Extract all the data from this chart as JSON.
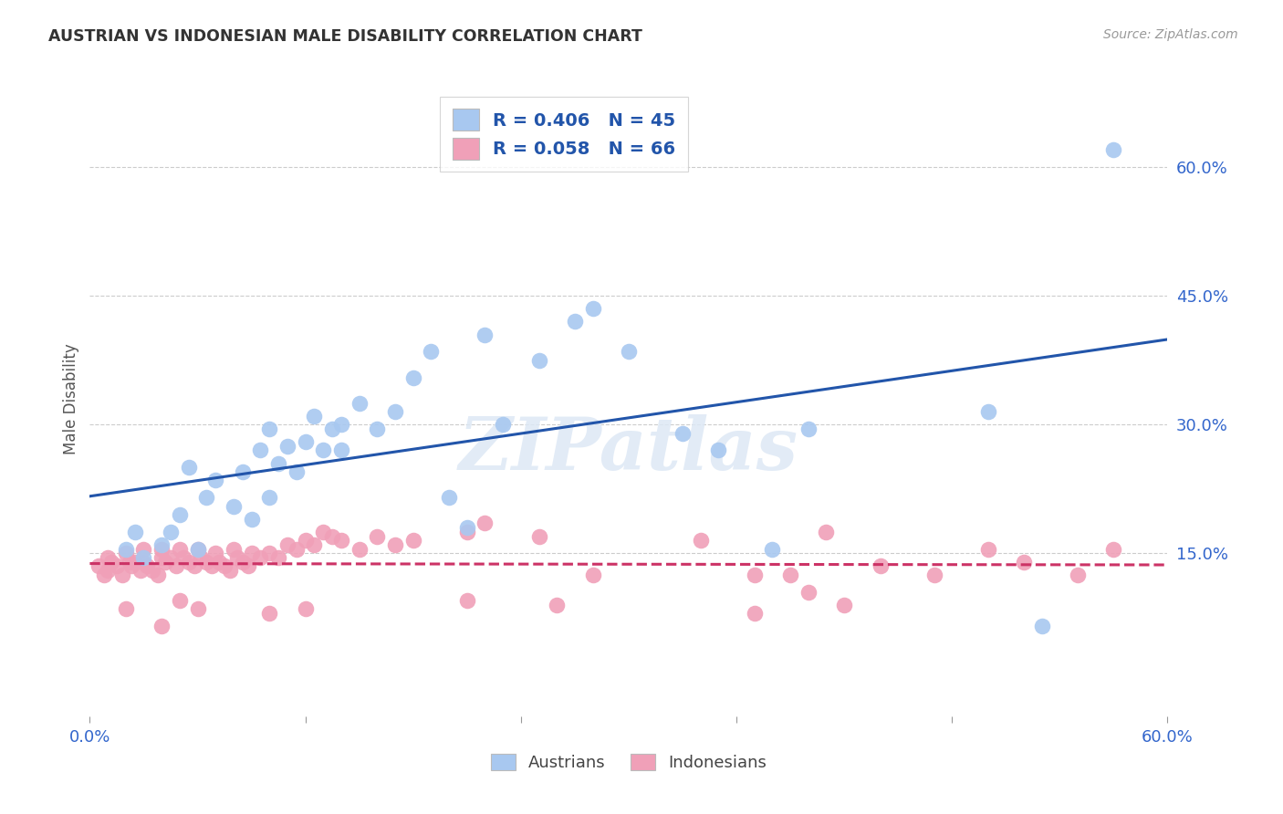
{
  "title": "AUSTRIAN VS INDONESIAN MALE DISABILITY CORRELATION CHART",
  "source": "Source: ZipAtlas.com",
  "ylabel": "Male Disability",
  "xlim": [
    0.0,
    0.6
  ],
  "ylim": [
    -0.04,
    0.7
  ],
  "ytick_positions_right": [
    0.6,
    0.45,
    0.3,
    0.15
  ],
  "blue_color": "#a8c8f0",
  "pink_color": "#f0a0b8",
  "blue_line_color": "#2255aa",
  "pink_line_color": "#cc3366",
  "watermark": "ZIPatlas",
  "austrians_x": [
    0.02,
    0.025,
    0.03,
    0.04,
    0.045,
    0.05,
    0.055,
    0.06,
    0.065,
    0.07,
    0.08,
    0.085,
    0.09,
    0.095,
    0.1,
    0.1,
    0.105,
    0.11,
    0.115,
    0.12,
    0.125,
    0.13,
    0.135,
    0.14,
    0.14,
    0.15,
    0.16,
    0.17,
    0.18,
    0.19,
    0.2,
    0.21,
    0.22,
    0.23,
    0.25,
    0.27,
    0.28,
    0.3,
    0.33,
    0.35,
    0.38,
    0.4,
    0.5,
    0.53,
    0.57
  ],
  "austrians_y": [
    0.155,
    0.175,
    0.145,
    0.16,
    0.175,
    0.195,
    0.25,
    0.155,
    0.215,
    0.235,
    0.205,
    0.245,
    0.19,
    0.27,
    0.215,
    0.295,
    0.255,
    0.275,
    0.245,
    0.28,
    0.31,
    0.27,
    0.295,
    0.3,
    0.27,
    0.325,
    0.295,
    0.315,
    0.355,
    0.385,
    0.215,
    0.18,
    0.405,
    0.3,
    0.375,
    0.42,
    0.435,
    0.385,
    0.29,
    0.27,
    0.155,
    0.295,
    0.315,
    0.065,
    0.62
  ],
  "indonesians_x": [
    0.005,
    0.008,
    0.01,
    0.01,
    0.012,
    0.015,
    0.018,
    0.02,
    0.022,
    0.023,
    0.025,
    0.028,
    0.03,
    0.03,
    0.032,
    0.035,
    0.038,
    0.04,
    0.04,
    0.042,
    0.045,
    0.048,
    0.05,
    0.052,
    0.055,
    0.058,
    0.06,
    0.062,
    0.065,
    0.068,
    0.07,
    0.072,
    0.075,
    0.078,
    0.08,
    0.082,
    0.085,
    0.088,
    0.09,
    0.095,
    0.1,
    0.105,
    0.11,
    0.115,
    0.12,
    0.125,
    0.13,
    0.135,
    0.14,
    0.15,
    0.16,
    0.17,
    0.18,
    0.21,
    0.22,
    0.25,
    0.28,
    0.34,
    0.37,
    0.39,
    0.41,
    0.44,
    0.47,
    0.5,
    0.52,
    0.57
  ],
  "indonesians_y": [
    0.135,
    0.125,
    0.145,
    0.13,
    0.14,
    0.135,
    0.125,
    0.15,
    0.14,
    0.135,
    0.14,
    0.13,
    0.155,
    0.14,
    0.135,
    0.13,
    0.125,
    0.155,
    0.145,
    0.14,
    0.145,
    0.135,
    0.155,
    0.145,
    0.14,
    0.135,
    0.155,
    0.145,
    0.14,
    0.135,
    0.15,
    0.14,
    0.135,
    0.13,
    0.155,
    0.145,
    0.14,
    0.135,
    0.15,
    0.145,
    0.15,
    0.145,
    0.16,
    0.155,
    0.165,
    0.16,
    0.175,
    0.17,
    0.165,
    0.155,
    0.17,
    0.16,
    0.165,
    0.175,
    0.185,
    0.17,
    0.125,
    0.165,
    0.125,
    0.125,
    0.175,
    0.135,
    0.125,
    0.155,
    0.14,
    0.155
  ],
  "indonesians_below": [
    [
      0.02,
      0.085
    ],
    [
      0.04,
      0.065
    ],
    [
      0.05,
      0.095
    ],
    [
      0.06,
      0.085
    ],
    [
      0.1,
      0.08
    ],
    [
      0.12,
      0.085
    ],
    [
      0.21,
      0.095
    ],
    [
      0.26,
      0.09
    ],
    [
      0.37,
      0.08
    ],
    [
      0.4,
      0.105
    ],
    [
      0.42,
      0.09
    ],
    [
      0.55,
      0.125
    ]
  ]
}
